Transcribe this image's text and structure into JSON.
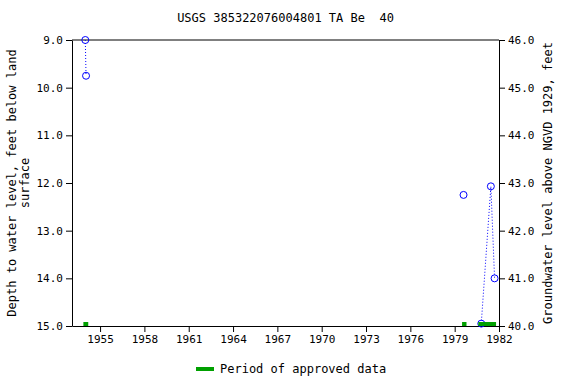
{
  "chart_data": {
    "type": "line",
    "title": "USGS 385322076004801 TA Be  40",
    "y_label": [
      "Depth to water level, feet below land",
      "surface"
    ],
    "y2_label": "Groundwater level above NGVD 1929, feet",
    "xlim": [
      1953.1,
      1982
    ],
    "xticks": [
      1955,
      1958,
      1961,
      1964,
      1967,
      1970,
      1973,
      1976,
      1979,
      1982
    ],
    "ylim": [
      15.0,
      9.0
    ],
    "yticks": [
      {
        "value": 9,
        "label": "9.0"
      },
      {
        "value": 10,
        "label": "10.0"
      },
      {
        "value": 11,
        "label": "11.0"
      },
      {
        "value": 12,
        "label": "12.0"
      },
      {
        "value": 13,
        "label": "13.0"
      },
      {
        "value": 14,
        "label": "14.0"
      },
      {
        "value": 15,
        "label": "15.0"
      }
    ],
    "y2lim": [
      40.0,
      46.0
    ],
    "y2ticks": [
      {
        "value": 40,
        "label": "40.0"
      },
      {
        "value": 41,
        "label": "41.0"
      },
      {
        "value": 42,
        "label": "42.0"
      },
      {
        "value": 43,
        "label": "43.0"
      },
      {
        "value": 44,
        "label": "44.0"
      },
      {
        "value": 45,
        "label": "45.0"
      },
      {
        "value": 46,
        "label": "46.0"
      }
    ],
    "grid": false,
    "legend": "bottom",
    "series": [
      {
        "x": [
          1954.0,
          1954.05
        ],
        "values": [
          9.0,
          9.75
        ],
        "color": "#0000ff",
        "marker": "circle",
        "line_style": "dotted"
      },
      {
        "x": [
          1979.6
        ],
        "values": [
          12.25
        ],
        "color": "#0000ff",
        "marker": "circle",
        "line_style": "dotted"
      },
      {
        "x": [
          1980.8,
          1981.45,
          1981.7
        ],
        "values": [
          14.95,
          12.07,
          14.0
        ],
        "color": "#0000ff",
        "marker": "circle",
        "line_style": "dotted"
      },
      {
        "name": "Period of approved data",
        "type": "range",
        "color": "#00a000",
        "start": [
          1953.87,
          1979.5,
          1980.6
        ],
        "end": [
          1954.2,
          1979.8,
          1981.8
        ]
      }
    ]
  }
}
